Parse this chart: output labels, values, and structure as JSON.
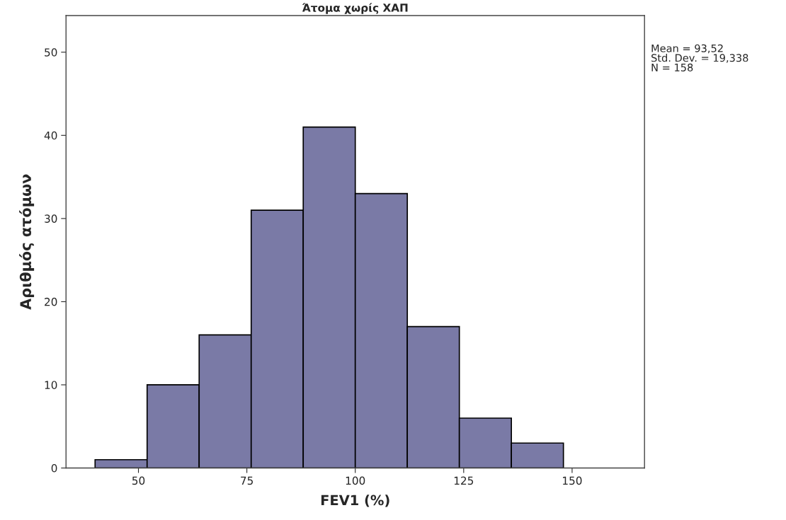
{
  "chart_data": {
    "type": "histogram",
    "title": "Άτομα χωρίς ΧΑΠ",
    "xlabel": "FEV1 (%)",
    "ylabel": "Αριθμός ατόμων",
    "bins": [
      40,
      52,
      64,
      76,
      88,
      100,
      112,
      124,
      136,
      148
    ],
    "values": [
      1,
      10,
      16,
      31,
      41,
      33,
      17,
      6,
      3
    ],
    "color": "#7a7aa6",
    "xlim": [
      33.3,
      166.7
    ],
    "xticks": [
      50,
      75,
      100,
      125,
      150
    ],
    "ylim": [
      0,
      54.4
    ],
    "yticks": [
      0,
      10,
      20,
      30,
      40,
      50
    ],
    "grid": false,
    "annotations": [
      "Mean = 93,52\nStd. Dev. = 19,338\nN = 158"
    ]
  }
}
